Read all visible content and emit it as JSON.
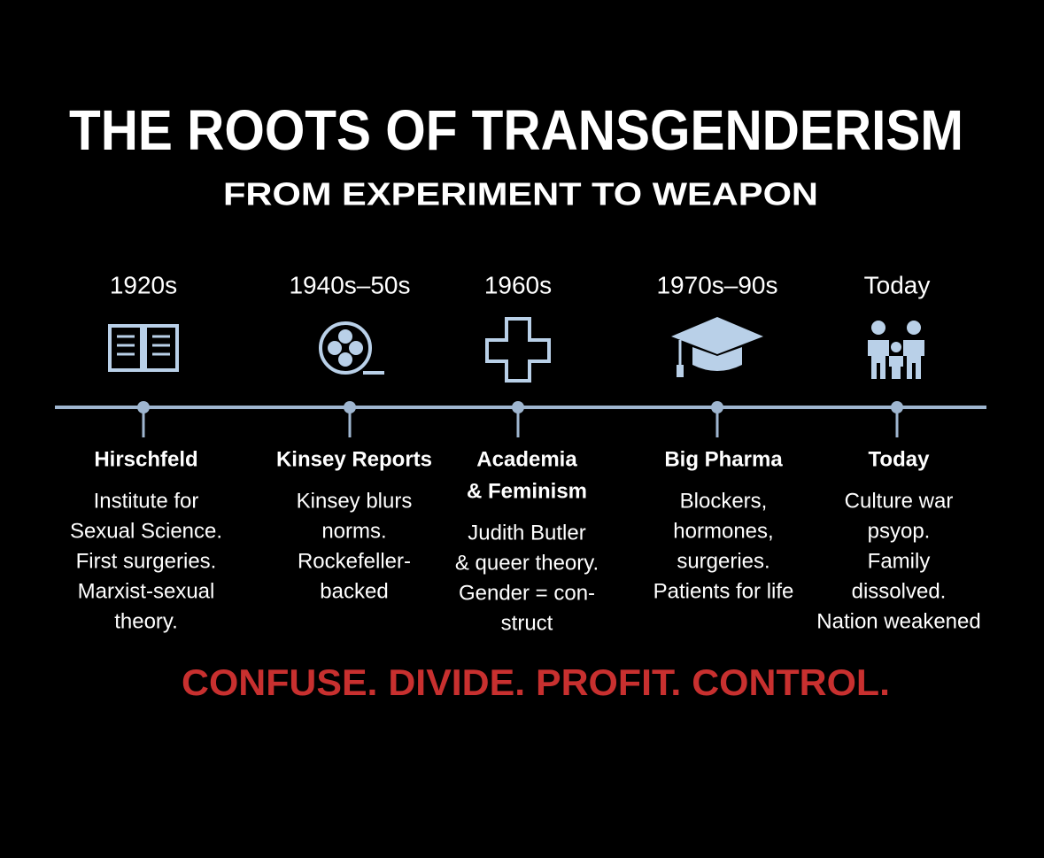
{
  "header": {
    "title": "THE ROOTS OF TRANSGENDERISM",
    "subtitle": "FROM EXPERIMENT TO WEAPON"
  },
  "timeline": {
    "eras": [
      {
        "period": "1920s",
        "heading": [
          "Hirschfeld"
        ],
        "lines": [
          "Institute for",
          "Sexual Science.",
          "First surgeries.",
          "Marxist-sexual",
          "theory."
        ]
      },
      {
        "period": "1940s–50s",
        "heading": [
          "Kinsey Reports"
        ],
        "lines": [
          "Kinsey blurs",
          "norms.",
          "Rockefeller-",
          "backed"
        ]
      },
      {
        "period": "1960s",
        "heading": [
          "Academia",
          "& Feminism"
        ],
        "lines": [
          "Judith Butler",
          "& queer theory.",
          "Gender = con-",
          "struct"
        ]
      },
      {
        "period": "1970s–90s",
        "heading": [
          "Big Pharma"
        ],
        "lines": [
          "Blockers,",
          "hormones,",
          "surgeries.",
          "Patients for life"
        ]
      },
      {
        "period": "Today",
        "heading": [
          "Today"
        ],
        "lines": [
          "Culture war",
          "psyop.",
          "Family",
          "dissolved.",
          "Nation weakened"
        ]
      }
    ]
  },
  "tagline": "CONFUSE. DIVIDE. PROFIT. CONTROL."
}
